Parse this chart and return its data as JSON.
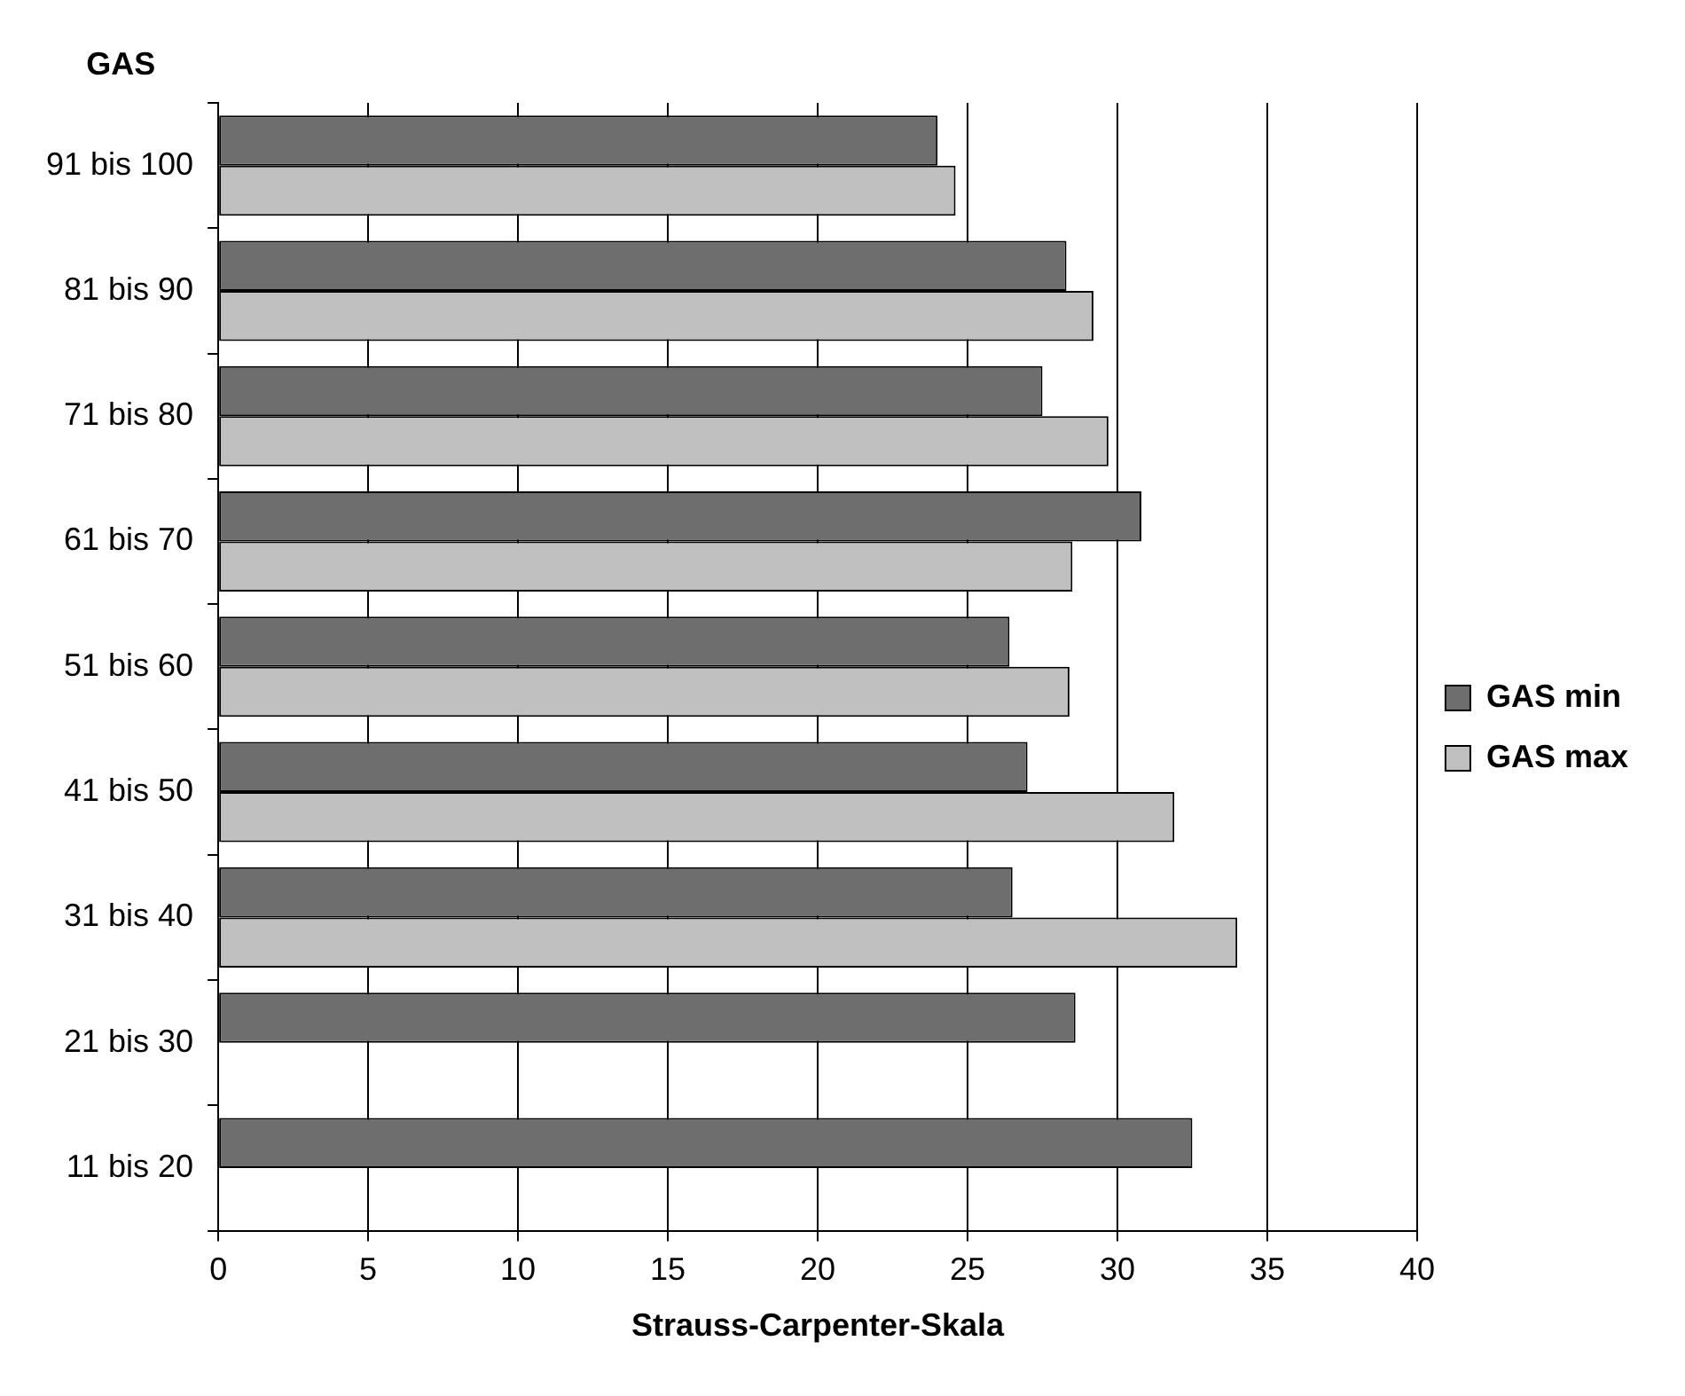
{
  "chart_data": {
    "type": "bar",
    "orientation": "horizontal",
    "ylabel": "GAS",
    "xlabel": "Strauss-Carpenter-Skala",
    "categories": [
      "91 bis 100",
      "81 bis 90",
      "71 bis 80",
      "61 bis 70",
      "51 bis 60",
      "41 bis 50",
      "31 bis 40",
      "21 bis 30",
      "11 bis 20"
    ],
    "series": [
      {
        "name": "GAS min",
        "color": "#6e6e6e",
        "values": [
          24.0,
          28.3,
          27.5,
          30.8,
          26.4,
          27.0,
          26.5,
          28.6,
          32.5
        ]
      },
      {
        "name": "GAS max",
        "color": "#c0c0c0",
        "values": [
          24.6,
          29.2,
          29.7,
          28.5,
          28.4,
          31.9,
          34.0,
          null,
          null
        ]
      }
    ],
    "xlim": [
      0,
      40
    ],
    "xticks": [
      0,
      5,
      10,
      15,
      20,
      25,
      30,
      35,
      40
    ],
    "grid": "x",
    "legend": "right"
  }
}
